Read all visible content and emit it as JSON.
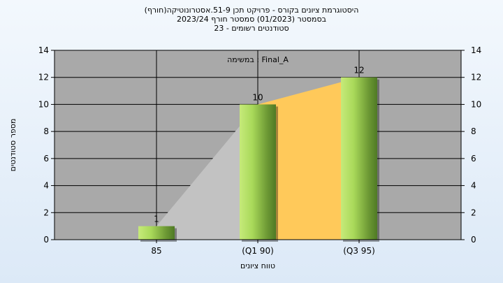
{
  "header": {
    "title_line1": "(היסטוגרמת ציונים בקורס - פרויקט תכן 51-9.אסטרונוטיקה(חורף",
    "title_line2": "בסמסטר  (01/2023)  סמסטר חורף  2023/24",
    "title_line3": "סטודנטים רשומים - 23"
  },
  "colors": {
    "bar_light": "#c6ea7a",
    "bar_dark": "#4f7a25",
    "area_gray": "#c2c2c2",
    "area_orange": "#ffc95a",
    "plot_bg": "#a9a9a9"
  },
  "chart_data": {
    "type": "bar",
    "title": "(היסטוגרמת ציונים בקורס - פרויקט תכן 51-9.אסטרונוטיקה(חורף",
    "subtitle": "בסמסטר  (01/2023)  סמסטר חורף  2023/24 / סטודנטים רשומים - 23",
    "annotation": "במשימה : Final_A",
    "categories": [
      "85",
      "(Q1 90)",
      "(Q3 95)"
    ],
    "values": [
      1,
      10,
      12
    ],
    "data_labels": [
      "1",
      "10",
      "12"
    ],
    "xlabel": "טווח ציונים",
    "ylabel": "מספר סטודנטים",
    "ylim": [
      0,
      14
    ],
    "yticks": [
      0,
      2,
      4,
      6,
      8,
      10,
      12,
      14
    ],
    "secondary_y_axis": true,
    "grid": true,
    "legend": "none",
    "area_bands": [
      {
        "from_category": 0,
        "to_category": 1,
        "color": "gray"
      },
      {
        "from_category": 1,
        "to_category": 2,
        "color": "orange"
      }
    ]
  }
}
